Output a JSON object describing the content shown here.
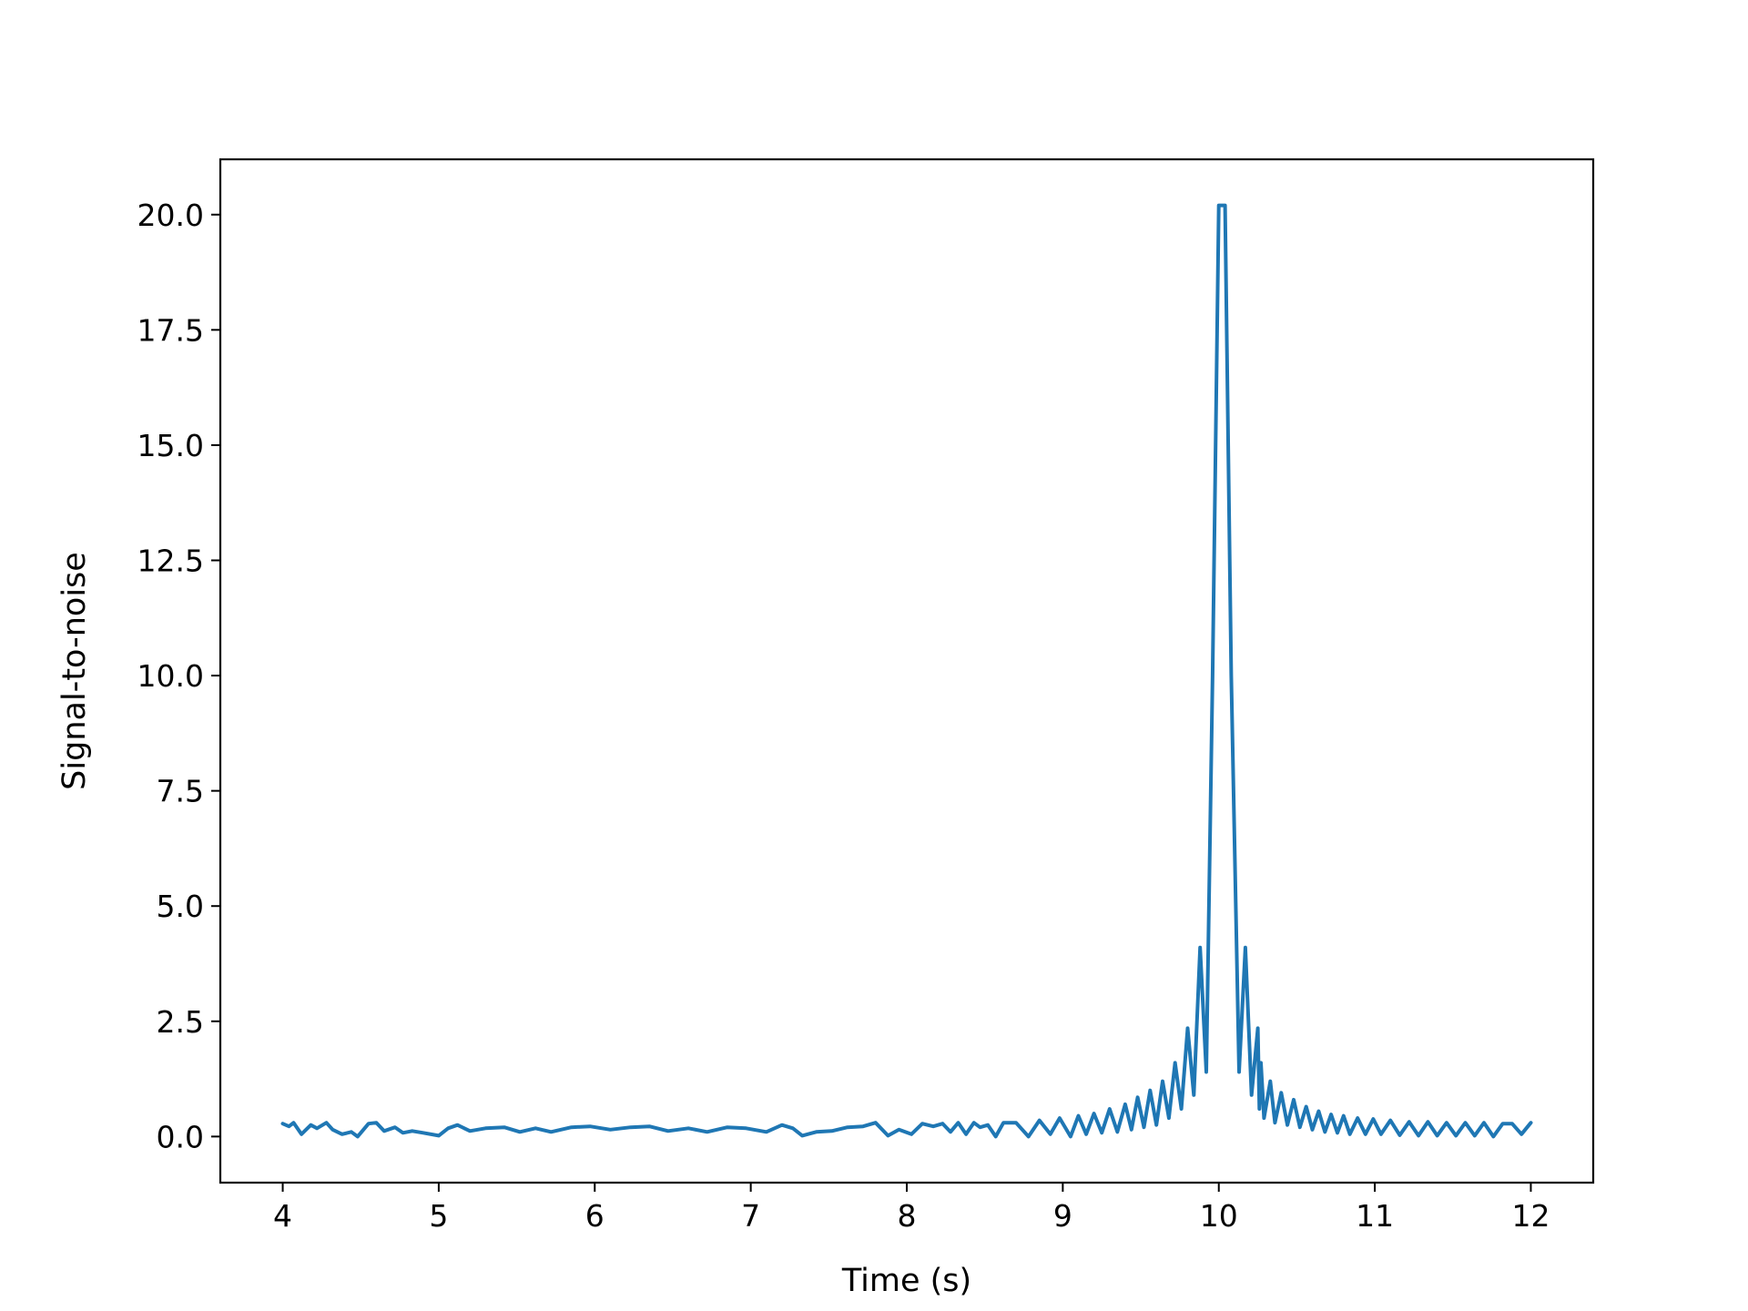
{
  "chart_data": {
    "type": "line",
    "title": "",
    "xlabel": "Time (s)",
    "ylabel": "Signal-to-noise",
    "xlim": [
      3.6,
      12.4
    ],
    "ylim": [
      -1.0,
      21.2
    ],
    "xticks": [
      4,
      5,
      6,
      7,
      8,
      9,
      10,
      11,
      12
    ],
    "xtick_labels": [
      "4",
      "5",
      "6",
      "7",
      "8",
      "9",
      "10",
      "11",
      "12"
    ],
    "yticks": [
      0.0,
      2.5,
      5.0,
      7.5,
      10.0,
      12.5,
      15.0,
      17.5,
      20.0
    ],
    "ytick_labels": [
      "0.0",
      "2.5",
      "5.0",
      "7.5",
      "10.0",
      "12.5",
      "15.0",
      "17.5",
      "20.0"
    ],
    "grid": false,
    "legend": "none",
    "series": [
      {
        "color": "#1f77b4",
        "x": [
          4.0,
          4.04,
          4.07,
          4.12,
          4.18,
          4.22,
          4.28,
          4.32,
          4.38,
          4.44,
          4.48,
          4.55,
          4.6,
          4.65,
          4.72,
          4.77,
          4.83,
          4.9,
          5.0,
          5.06,
          5.12,
          5.2,
          5.3,
          5.42,
          5.52,
          5.62,
          5.72,
          5.85,
          5.97,
          6.1,
          6.23,
          6.35,
          6.47,
          6.6,
          6.72,
          6.85,
          6.97,
          7.1,
          7.2,
          7.27,
          7.33,
          7.42,
          7.52,
          7.62,
          7.72,
          7.8,
          7.88,
          7.95,
          8.03,
          8.1,
          8.17,
          8.23,
          8.28,
          8.33,
          8.38,
          8.43,
          8.47,
          8.52,
          8.57,
          8.62,
          8.7,
          8.78,
          8.85,
          8.92,
          8.98,
          9.05,
          9.1,
          9.15,
          9.2,
          9.25,
          9.3,
          9.35,
          9.4,
          9.44,
          9.48,
          9.52,
          9.56,
          9.6,
          9.64,
          9.68,
          9.72,
          9.76,
          9.8,
          9.84,
          9.88,
          9.92,
          9.96,
          10.0,
          10.04,
          10.08,
          10.13,
          10.17,
          10.21,
          10.25,
          10.26,
          10.27,
          10.29,
          10.33,
          10.36,
          10.4,
          10.44,
          10.48,
          10.52,
          10.56,
          10.6,
          10.64,
          10.68,
          10.72,
          10.76,
          10.8,
          10.84,
          10.89,
          10.94,
          10.99,
          11.04,
          11.1,
          11.16,
          11.22,
          11.28,
          11.34,
          11.4,
          11.46,
          11.52,
          11.58,
          11.64,
          11.7,
          11.76,
          11.82,
          11.88,
          11.94,
          12.0
        ],
        "y": [
          0.28,
          0.22,
          0.3,
          0.05,
          0.25,
          0.18,
          0.3,
          0.15,
          0.05,
          0.1,
          0.0,
          0.28,
          0.3,
          0.12,
          0.2,
          0.08,
          0.12,
          0.08,
          0.02,
          0.18,
          0.25,
          0.12,
          0.18,
          0.2,
          0.1,
          0.18,
          0.1,
          0.2,
          0.22,
          0.15,
          0.2,
          0.22,
          0.12,
          0.18,
          0.1,
          0.2,
          0.18,
          0.1,
          0.25,
          0.18,
          0.02,
          0.1,
          0.12,
          0.2,
          0.22,
          0.3,
          0.02,
          0.15,
          0.05,
          0.28,
          0.22,
          0.28,
          0.1,
          0.3,
          0.05,
          0.3,
          0.2,
          0.25,
          0.0,
          0.3,
          0.3,
          0.0,
          0.35,
          0.05,
          0.4,
          0.0,
          0.45,
          0.05,
          0.5,
          0.08,
          0.6,
          0.1,
          0.7,
          0.15,
          0.85,
          0.2,
          1.0,
          0.25,
          1.2,
          0.4,
          1.6,
          0.6,
          2.35,
          0.9,
          4.1,
          1.4,
          10.0,
          20.2,
          20.2,
          10.0,
          1.4,
          4.1,
          0.9,
          2.35,
          0.6,
          1.6,
          0.4,
          1.2,
          0.3,
          0.95,
          0.25,
          0.8,
          0.2,
          0.65,
          0.15,
          0.55,
          0.1,
          0.48,
          0.08,
          0.45,
          0.05,
          0.4,
          0.05,
          0.38,
          0.05,
          0.35,
          0.03,
          0.32,
          0.02,
          0.32,
          0.02,
          0.3,
          0.02,
          0.3,
          0.02,
          0.3,
          0.0,
          0.28,
          0.28,
          0.05,
          0.3
        ]
      }
    ]
  }
}
